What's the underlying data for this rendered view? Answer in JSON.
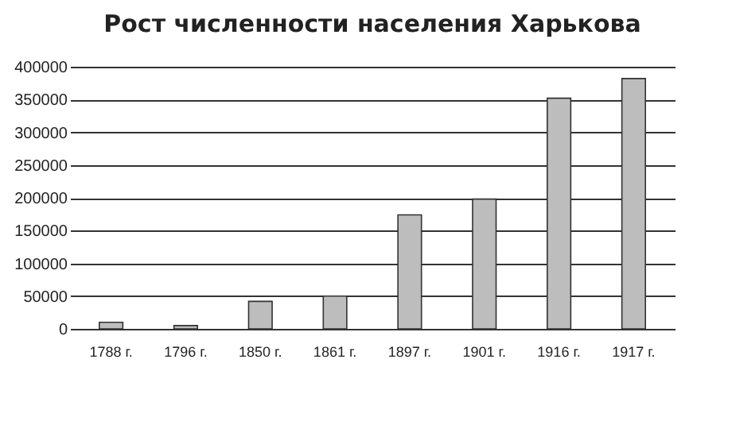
{
  "chart_data": {
    "type": "bar",
    "title": "Рост численности населения Харькова",
    "categories": [
      "1788 г.",
      "1796 г.",
      "1850 г.",
      "1861 г.",
      "1897 г.",
      "1901 г.",
      "1916 г.",
      "1917 г."
    ],
    "values": [
      10000,
      5000,
      42000,
      50000,
      174000,
      198000,
      352000,
      382000
    ],
    "color": "#bdbdbd",
    "ylim": [
      0,
      400000
    ],
    "yticks": [
      0,
      50000,
      100000,
      150000,
      200000,
      250000,
      300000,
      350000,
      400000
    ],
    "grid": "y"
  }
}
